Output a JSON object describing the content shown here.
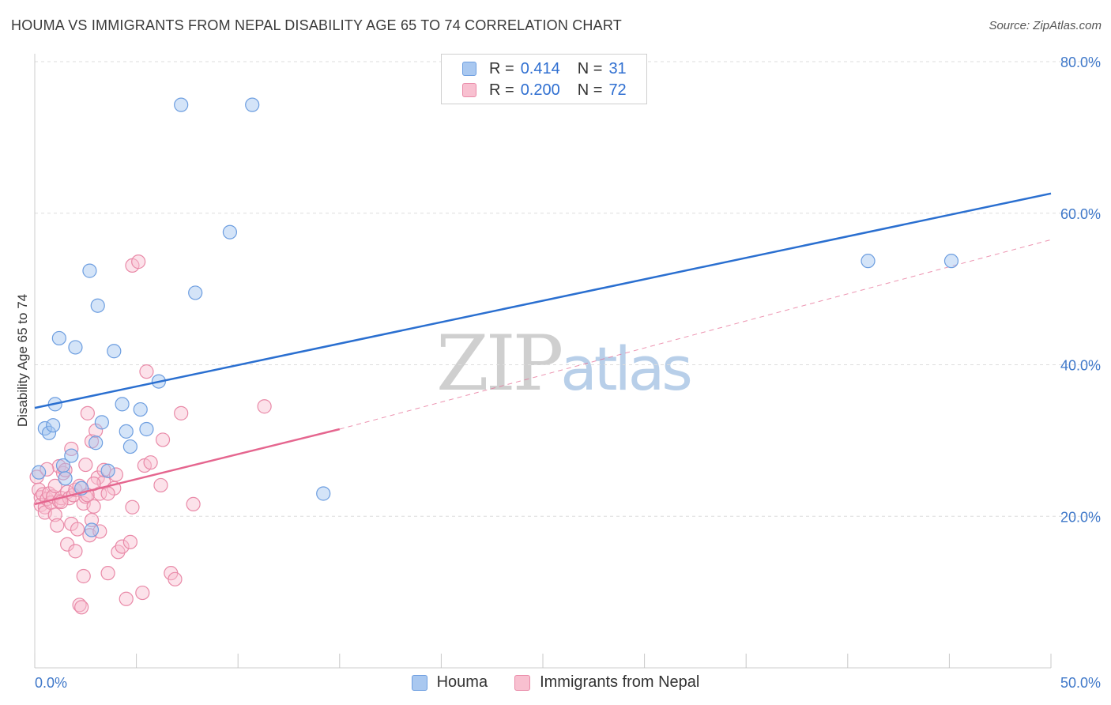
{
  "title": "HOUMA VS IMMIGRANTS FROM NEPAL DISABILITY AGE 65 TO 74 CORRELATION CHART",
  "source": "Source: ZipAtlas.com",
  "watermark": {
    "zip": "ZIP",
    "atlas": "atlas"
  },
  "legend": {
    "rows": [
      {
        "r_label": "R =",
        "r_value": "0.414",
        "n_label": "N =",
        "n_value": "31",
        "color": "#a9c8f0",
        "border": "#6d9ee0"
      },
      {
        "r_label": "R =",
        "r_value": "0.200",
        "n_label": "N =",
        "n_value": "72",
        "color": "#f8c0d0",
        "border": "#e98aa8"
      }
    ]
  },
  "bottom_legend": [
    {
      "label": "Houma",
      "color": "#a9c8f0",
      "border": "#6d9ee0"
    },
    {
      "label": "Immigrants from Nepal",
      "color": "#f8c0d0",
      "border": "#e98aa8"
    }
  ],
  "chart_data": {
    "type": "scatter",
    "xlabel": "",
    "ylabel": "Disability Age 65 to 74",
    "xlim": [
      0,
      50
    ],
    "ylim": [
      0,
      80
    ],
    "x_tick_labels": [
      "0.0%",
      "50.0%"
    ],
    "y_tick_labels": [
      "20.0%",
      "40.0%",
      "60.0%",
      "80.0%"
    ],
    "y_ticks": [
      20,
      40,
      60,
      80
    ],
    "grid": true,
    "colors": {
      "houma": "#6d9ee0",
      "houma_fill": "rgba(160,196,240,0.45)",
      "houma_line": "#2a6fd0",
      "nepal": "#e98aa8",
      "nepal_fill": "rgba(248,190,208,0.45)",
      "nepal_line": "#e5668f",
      "axis_text": "#3f78c9"
    },
    "series": [
      {
        "name": "Houma",
        "points": [
          [
            0.2,
            25.8
          ],
          [
            0.5,
            31.6
          ],
          [
            0.7,
            31.0
          ],
          [
            0.9,
            32.0
          ],
          [
            1.0,
            34.8
          ],
          [
            1.2,
            43.5
          ],
          [
            1.4,
            26.7
          ],
          [
            1.5,
            25.0
          ],
          [
            1.8,
            28.0
          ],
          [
            2.0,
            42.3
          ],
          [
            2.3,
            23.7
          ],
          [
            2.7,
            52.4
          ],
          [
            2.8,
            18.2
          ],
          [
            3.1,
            47.8
          ],
          [
            3.0,
            29.7
          ],
          [
            3.3,
            32.4
          ],
          [
            3.6,
            26.0
          ],
          [
            3.9,
            41.8
          ],
          [
            4.3,
            34.8
          ],
          [
            4.5,
            31.2
          ],
          [
            4.7,
            29.2
          ],
          [
            5.2,
            34.1
          ],
          [
            5.5,
            31.5
          ],
          [
            6.1,
            37.8
          ],
          [
            7.2,
            74.3
          ],
          [
            7.9,
            49.5
          ],
          [
            9.6,
            57.5
          ],
          [
            10.7,
            74.3
          ],
          [
            14.2,
            23.0
          ],
          [
            41.0,
            53.7
          ],
          [
            45.1,
            53.7
          ]
        ],
        "trend": {
          "x": [
            0,
            50
          ],
          "y": [
            34.3,
            62.6
          ]
        }
      },
      {
        "name": "Immigrants from Nepal",
        "points": [
          [
            0.1,
            25.2
          ],
          [
            0.2,
            23.5
          ],
          [
            0.3,
            22.5
          ],
          [
            0.3,
            21.5
          ],
          [
            0.4,
            22.9
          ],
          [
            0.5,
            21.2
          ],
          [
            0.5,
            20.5
          ],
          [
            0.6,
            22.3
          ],
          [
            0.7,
            23.0
          ],
          [
            0.8,
            21.8
          ],
          [
            0.9,
            22.6
          ],
          [
            1.0,
            20.2
          ],
          [
            1.0,
            24.0
          ],
          [
            1.1,
            18.8
          ],
          [
            1.2,
            22.0
          ],
          [
            1.2,
            26.6
          ],
          [
            1.3,
            22.4
          ],
          [
            1.4,
            25.7
          ],
          [
            1.5,
            26.1
          ],
          [
            1.6,
            23.2
          ],
          [
            1.6,
            16.3
          ],
          [
            1.7,
            22.4
          ],
          [
            1.8,
            28.9
          ],
          [
            1.8,
            19.0
          ],
          [
            1.9,
            22.8
          ],
          [
            2.0,
            15.4
          ],
          [
            2.0,
            23.5
          ],
          [
            2.1,
            18.3
          ],
          [
            2.2,
            24.0
          ],
          [
            2.2,
            8.3
          ],
          [
            2.3,
            8.0
          ],
          [
            2.4,
            21.7
          ],
          [
            2.4,
            12.1
          ],
          [
            2.5,
            22.6
          ],
          [
            2.5,
            26.8
          ],
          [
            2.6,
            22.8
          ],
          [
            2.6,
            33.6
          ],
          [
            2.7,
            17.5
          ],
          [
            2.8,
            19.5
          ],
          [
            2.8,
            29.9
          ],
          [
            2.9,
            21.3
          ],
          [
            3.0,
            31.3
          ],
          [
            3.1,
            25.1
          ],
          [
            3.2,
            18.0
          ],
          [
            3.2,
            23.0
          ],
          [
            3.4,
            24.5
          ],
          [
            3.4,
            26.1
          ],
          [
            3.6,
            12.5
          ],
          [
            3.9,
            23.7
          ],
          [
            4.0,
            25.5
          ],
          [
            4.1,
            15.3
          ],
          [
            4.3,
            16.0
          ],
          [
            4.5,
            9.1
          ],
          [
            4.7,
            16.6
          ],
          [
            4.8,
            21.2
          ],
          [
            4.8,
            53.1
          ],
          [
            5.1,
            53.6
          ],
          [
            5.3,
            9.9
          ],
          [
            5.4,
            26.7
          ],
          [
            5.5,
            39.1
          ],
          [
            5.7,
            27.1
          ],
          [
            6.2,
            24.1
          ],
          [
            6.3,
            30.1
          ],
          [
            6.7,
            12.5
          ],
          [
            6.9,
            11.7
          ],
          [
            7.2,
            33.6
          ],
          [
            7.8,
            21.6
          ],
          [
            11.3,
            34.5
          ],
          [
            0.6,
            26.2
          ],
          [
            1.3,
            21.9
          ],
          [
            2.9,
            24.3
          ],
          [
            3.6,
            23.0
          ]
        ],
        "trend": {
          "x": [
            0,
            15
          ],
          "y": [
            21.6,
            31.5
          ]
        },
        "trend_extension": {
          "x": [
            15,
            50
          ],
          "y": [
            31.5,
            56.5
          ]
        }
      }
    ]
  }
}
